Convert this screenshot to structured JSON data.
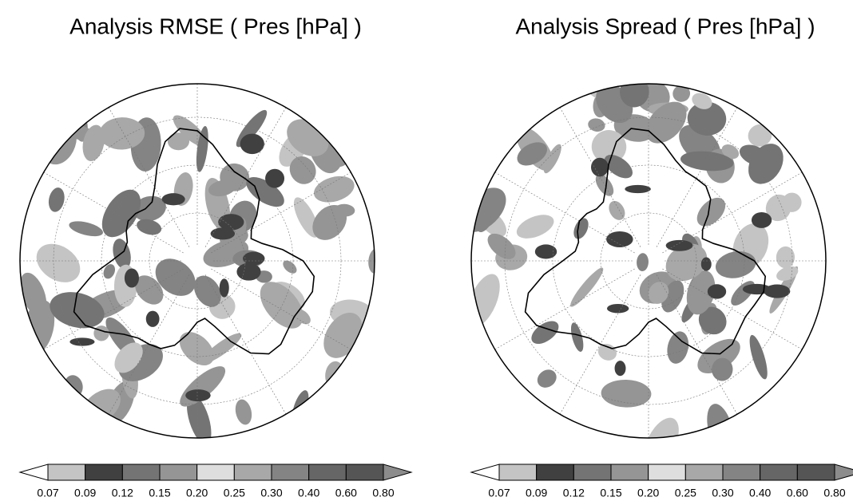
{
  "panels": [
    {
      "title": "Analysis RMSE (  Pres [hPa]  )",
      "colorbar": {
        "labels": [
          "0.07",
          "0.09",
          "0.12",
          "0.15",
          "0.20",
          "0.25",
          "0.30",
          "0.40",
          "0.60",
          "0.80"
        ],
        "colors": [
          "#c4c4c4",
          "#404040",
          "#747474",
          "#959595",
          "#dedede",
          "#a8a8a8",
          "#848484",
          "#666666",
          "#555555"
        ],
        "below_color": "#ffffff",
        "above_color": "#8c8c8c"
      }
    },
    {
      "title": "Analysis Spread (  Pres [hPa]  )",
      "colorbar": {
        "labels": [
          "0.07",
          "0.09",
          "0.12",
          "0.15",
          "0.20",
          "0.25",
          "0.30",
          "0.40",
          "0.60",
          "0.80"
        ],
        "colors": [
          "#c4c4c4",
          "#404040",
          "#747474",
          "#959595",
          "#dedede",
          "#a8a8a8",
          "#848484",
          "#666666",
          "#555555"
        ],
        "below_color": "#ffffff",
        "above_color": "#8c8c8c"
      }
    }
  ]
}
